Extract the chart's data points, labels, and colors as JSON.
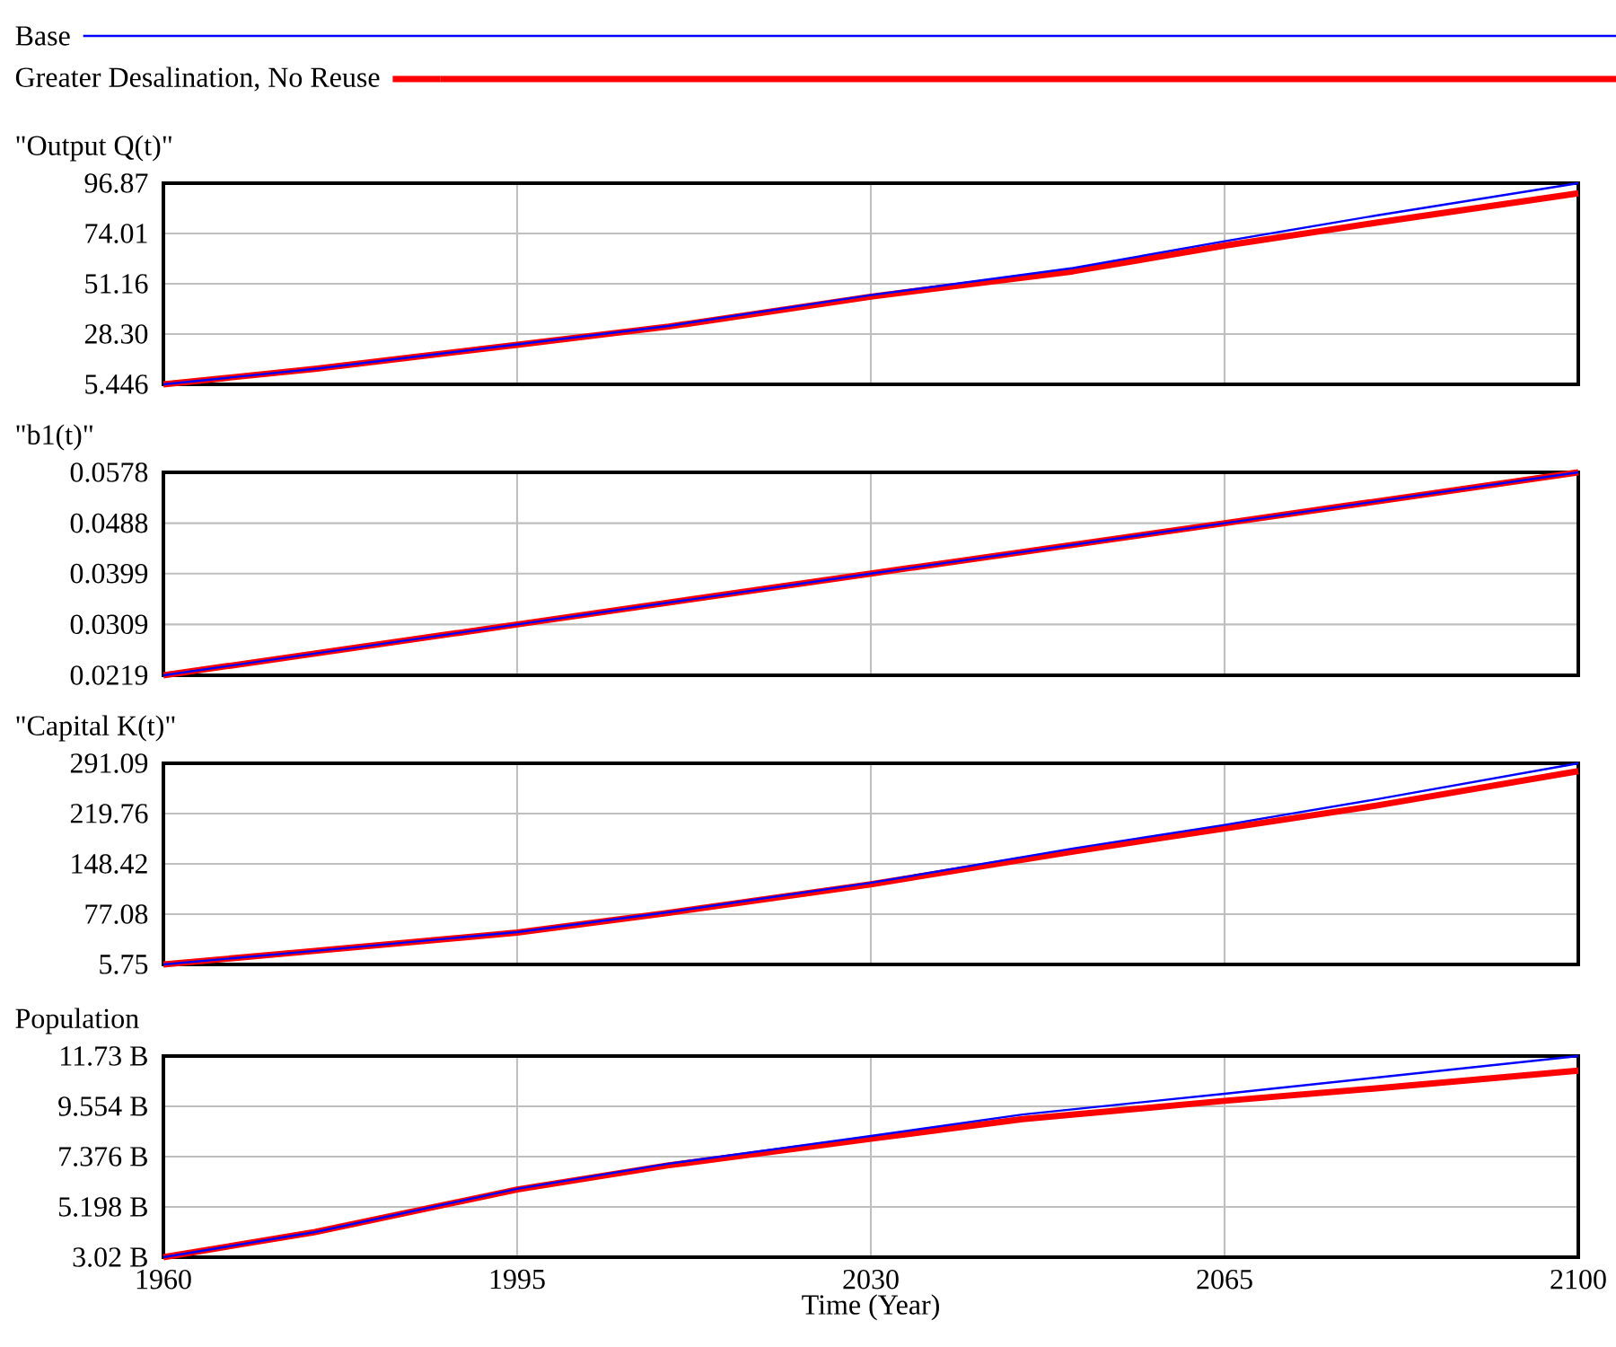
{
  "chart_data": [
    {
      "type": "line",
      "title": "\"Output Q(t)\"",
      "legend": "top",
      "grid": true,
      "tick_labels": "y",
      "xlim": [
        1960,
        2100
      ],
      "xticks": [
        1960,
        1995,
        2030,
        2065,
        2100
      ],
      "ylim": [
        5.446,
        96.87
      ],
      "yticks": [
        5.446,
        {
          "value": 28.3,
          "label": "28.30"
        },
        51.16,
        74.01,
        96.87
      ],
      "x": [
        1960,
        1975,
        1995,
        2010,
        2030,
        2050,
        2065,
        2080,
        2100
      ],
      "series": [
        {
          "name": "Base",
          "color": "#0000ff",
          "values": [
            5.446,
            12.5,
            23.6,
            32,
            46,
            58.3,
            70.5,
            82.2,
            96.87
          ]
        },
        {
          "name": "Greater Desalination, No Reuse",
          "color": "#ff0000",
          "values": [
            5.446,
            12.5,
            23.4,
            31.7,
            45.3,
            56.8,
            68.5,
            78.9,
            92.3
          ]
        }
      ]
    },
    {
      "type": "line",
      "title": "\"b1(t)\"",
      "grid": true,
      "tick_labels": "y",
      "xlim": [
        1960,
        2100
      ],
      "xticks": [
        1960,
        1995,
        2030,
        2065,
        2100
      ],
      "ylim": [
        0.0219,
        0.0578
      ],
      "yticks": [
        0.0219,
        0.0309,
        0.0399,
        0.0488,
        0.0578
      ],
      "x": [
        1960,
        1995,
        2030,
        2065,
        2100
      ],
      "series": [
        {
          "color": "#0000ff",
          "values": [
            0.0219,
            0.0309,
            0.0399,
            0.0488,
            0.0578
          ]
        },
        {
          "color": "#ff0000",
          "values": [
            0.0219,
            0.0309,
            0.0399,
            0.0488,
            0.0578
          ]
        }
      ]
    },
    {
      "type": "line",
      "title": "\"Capital K(t)\"",
      "grid": true,
      "tick_labels": "y",
      "xlim": [
        1960,
        2100
      ],
      "xticks": [
        1960,
        1995,
        2030,
        2065,
        2100
      ],
      "ylim": [
        5.75,
        291.09
      ],
      "yticks": [
        5.75,
        77.08,
        148.42,
        219.76,
        291.09
      ],
      "x": [
        1960,
        1975,
        1995,
        2010,
        2030,
        2050,
        2065,
        2080,
        2100
      ],
      "series": [
        {
          "color": "#0000ff",
          "values": [
            5.75,
            25,
            51.6,
            80,
            121.5,
            170.3,
            203.7,
            240,
            291.09
          ]
        },
        {
          "color": "#ff0000",
          "values": [
            5.75,
            25,
            51,
            79,
            119.5,
            166,
            198.6,
            231,
            280
          ]
        }
      ]
    },
    {
      "type": "line",
      "title": "Population",
      "xlabel": "Time (Year)",
      "grid": true,
      "xlim": [
        1960,
        2100
      ],
      "xticks": [
        1960,
        1995,
        2030,
        2065,
        2100
      ],
      "ylim": [
        3.02,
        11.73
      ],
      "yticks": [
        {
          "value": 3.02,
          "label": "3.02 B"
        },
        {
          "value": 5.198,
          "label": "5.198 B"
        },
        {
          "value": 7.376,
          "label": "7.376 B"
        },
        {
          "value": 9.554,
          "label": "9.554 B"
        },
        {
          "value": 11.73,
          "label": "11.73 B"
        }
      ],
      "x": [
        1960,
        1975,
        1995,
        2010,
        2030,
        2045,
        2065,
        2080,
        2100
      ],
      "series": [
        {
          "color": "#0000ff",
          "values": [
            3.02,
            4.11,
            5.98,
            7.07,
            8.27,
            9.2,
            10.1,
            10.8,
            11.73
          ]
        },
        {
          "color": "#ff0000",
          "values": [
            3.02,
            4.11,
            5.95,
            7.0,
            8.15,
            9.0,
            9.79,
            10.33,
            11.1
          ]
        }
      ]
    }
  ]
}
